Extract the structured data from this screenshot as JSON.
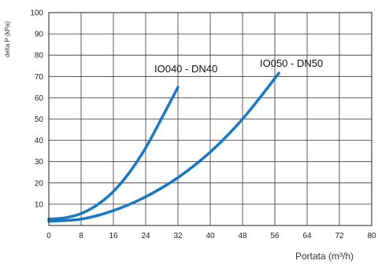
{
  "chart_data": {
    "type": "line",
    "xlabel": "Portata (m³/h)",
    "ylabel": "delta P (kPa)",
    "xlim": [
      0,
      80
    ],
    "ylim": [
      0,
      100
    ],
    "x_ticks": [
      0,
      8,
      16,
      24,
      32,
      40,
      48,
      56,
      64,
      72,
      80
    ],
    "y_ticks": [
      10,
      20,
      30,
      40,
      50,
      60,
      70,
      80,
      90,
      100
    ],
    "grid": true,
    "series_color": "#1a78c2",
    "series": [
      {
        "name": "IO040 - DN40",
        "x": [
          0,
          4,
          8,
          12,
          16,
          20,
          24,
          28,
          32
        ],
        "y": [
          3,
          3.6,
          5.6,
          9.7,
          16,
          25,
          36.5,
          50.5,
          65
        ]
      },
      {
        "name": "IO050 - DN50",
        "x": [
          0,
          8,
          16,
          24,
          32,
          40,
          48,
          57
        ],
        "y": [
          2,
          3,
          7,
          13.5,
          22.5,
          34.5,
          50,
          71.5
        ]
      }
    ]
  }
}
